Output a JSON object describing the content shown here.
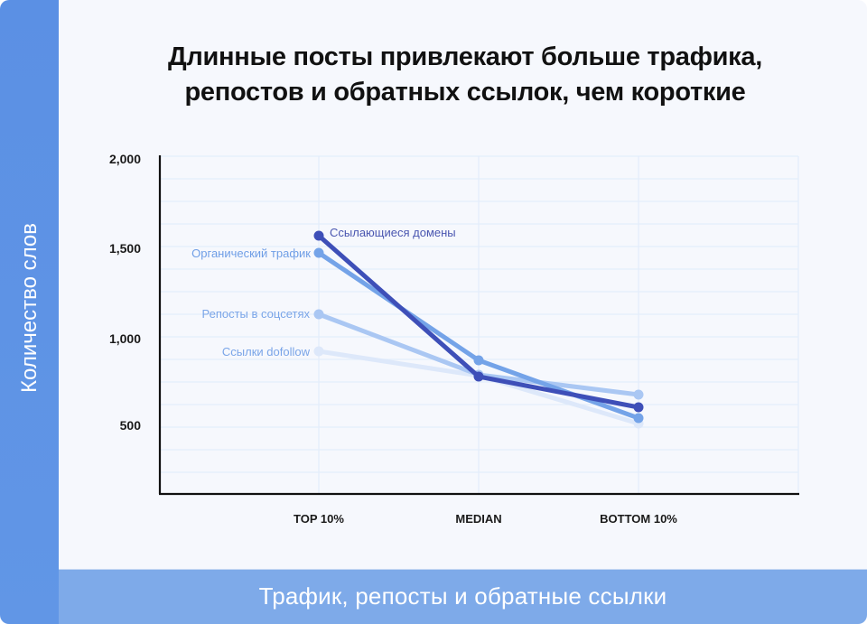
{
  "title_line1": "Длинные посты привлекают больше трафика,",
  "title_line2": "репостов и обратных ссылок, чем короткие",
  "y_axis_label": "Количество слов",
  "x_axis_label": "Трафик, репосты и обратные ссылки",
  "y_ticks": [
    "2,000",
    "1,500",
    "1,000",
    "500"
  ],
  "x_ticks": [
    "TOP 10%",
    "MEDIAN",
    "BOTTOM 10%"
  ],
  "series_labels": {
    "referring_domains": "Ссылающиеся домены",
    "organic_traffic": "Органический трафик",
    "social_shares": "Репосты в соцсетях",
    "dofollow_links": "Ссылки dofollow"
  },
  "colors": {
    "sidebar": "#5f94e4",
    "bottom_bar": "#7eaae9",
    "background": "#f6f8fd",
    "referring_domains": "#3e4fb8",
    "organic_traffic": "#74a3e8",
    "social_shares": "#aac7f3",
    "dofollow_links": "#dde8fa",
    "label_blue": "#6f9ee6",
    "label_indigo": "#4a56b0"
  },
  "chart_data": {
    "type": "line",
    "title": "Длинные посты привлекают больше трафика, репостов и обратных ссылок, чем короткие",
    "xlabel": "Трафик, репосты и обратные ссылки",
    "ylabel": "Количество слов",
    "categories": [
      "TOP 10%",
      "MEDIAN",
      "BOTTOM 10%"
    ],
    "ylim": [
      250,
      2000
    ],
    "yticks": [
      500,
      1000,
      1500,
      2000
    ],
    "grid": true,
    "legend_position": "inline labels at TOP 10% points",
    "series": [
      {
        "name": "Ссылающиеся домены",
        "values": [
          1560,
          780,
          610
        ]
      },
      {
        "name": "Органический трафик",
        "values": [
          1465,
          870,
          550
        ]
      },
      {
        "name": "Репосты в соцсетях",
        "values": [
          1125,
          790,
          680
        ]
      },
      {
        "name": "Ссылки dofollow",
        "values": [
          920,
          785,
          520
        ]
      }
    ]
  }
}
